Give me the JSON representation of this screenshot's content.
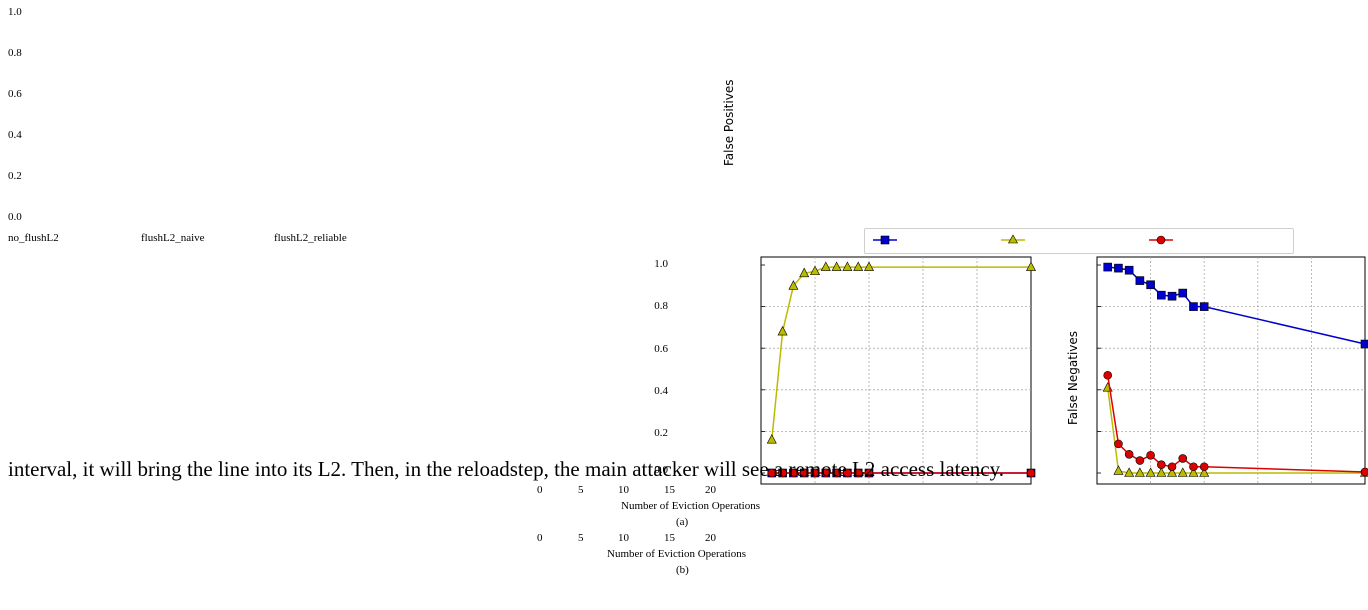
{
  "chart_data": [
    {
      "type": "bar",
      "categories": [
        "no_flushL2",
        "flushL2_naive",
        "flushL2_reliable"
      ],
      "ylabel": "False Positives",
      "ylim": [
        0,
        1.0
      ],
      "yticks": [
        "1.0",
        "0.8",
        "0.6",
        "0.4",
        "0.2",
        "0.0"
      ]
    },
    {
      "type": "line",
      "xlabel": "Number of Eviction Operations",
      "caption": "(a)",
      "xticks": [
        "0",
        "5",
        "10",
        "15",
        "20"
      ],
      "yticks": [
        "1.0",
        "0.8",
        "0.6",
        "0.4",
        "0.2",
        "0.0"
      ],
      "ylim": [
        0,
        1.0
      ],
      "xlim": [
        0,
        25
      ],
      "colors": [
        "#0000cc",
        "#bbbb00",
        "#dd0000"
      ],
      "series": [
        {
          "marker": "square",
          "x": [
            1,
            2,
            3,
            4,
            5,
            6,
            7,
            8,
            9,
            10,
            25
          ],
          "values": [
            0,
            0,
            0,
            0,
            0,
            0,
            0,
            0,
            0,
            0,
            0
          ]
        },
        {
          "marker": "triangle",
          "x": [
            1,
            2,
            3,
            4,
            5,
            6,
            7,
            8,
            9,
            10,
            25
          ],
          "values": [
            0.16,
            0.68,
            0.9,
            0.96,
            0.97,
            0.99,
            0.99,
            0.99,
            0.99,
            0.99,
            0.99
          ]
        },
        {
          "marker": "circle",
          "x": [
            1,
            2,
            3,
            4,
            5,
            6,
            7,
            8,
            9,
            10,
            25
          ],
          "values": [
            0,
            0,
            0,
            0,
            0,
            0,
            0,
            0,
            0,
            0,
            0
          ]
        }
      ]
    },
    {
      "type": "line",
      "ylabel": "False Negatives",
      "xlabel": "Number of Eviction Operations",
      "caption": "(b)",
      "xticks": [
        "0",
        "5",
        "10",
        "15",
        "20"
      ],
      "ylim": [
        0,
        1.0
      ],
      "xlim": [
        0,
        25
      ],
      "series": [
        {
          "marker": "square",
          "x": [
            1,
            2,
            3,
            4,
            5,
            6,
            7,
            8,
            9,
            10,
            25
          ],
          "values": [
            0.99,
            0.985,
            0.975,
            0.925,
            0.905,
            0.855,
            0.85,
            0.865,
            0.8,
            0.8,
            0.62
          ]
        },
        {
          "marker": "triangle",
          "x": [
            1,
            2,
            3,
            4,
            5,
            6,
            7,
            8,
            9,
            10,
            25
          ],
          "values": [
            0.41,
            0.01,
            0,
            0,
            0,
            0,
            0,
            0,
            0,
            0,
            0
          ]
        },
        {
          "marker": "circle",
          "x": [
            1,
            2,
            3,
            4,
            5,
            6,
            7,
            8,
            9,
            10,
            25
          ],
          "values": [
            0.47,
            0.14,
            0.09,
            0.06,
            0.085,
            0.04,
            0.03,
            0.07,
            0.03,
            0.03,
            0.005
          ]
        }
      ]
    }
  ],
  "body_text": "interval, it will bring the line into its L2. Then, in the reloadstep, the main attacker will see a remote L2 access latency."
}
